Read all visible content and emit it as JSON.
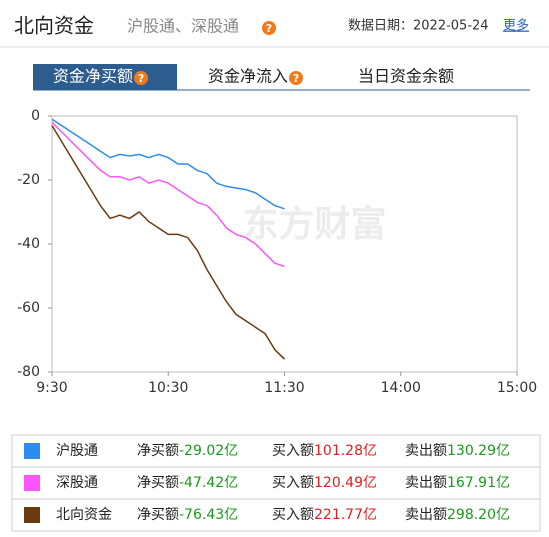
{
  "header": {
    "title": "北向资金",
    "subtitle": "沪股通、深股通",
    "help_icon": "?",
    "date_label": "数据日期：2022-05-24",
    "more": "更多"
  },
  "tabs": [
    {
      "label": "资金净买额",
      "help": "?"
    },
    {
      "label": "资金净流入",
      "help": "?"
    },
    {
      "label": "当日资金余额"
    }
  ],
  "active_tab": 0,
  "chart_data": {
    "type": "line",
    "watermark": "东方财富",
    "x": [
      0,
      5,
      10,
      15,
      20,
      25,
      30,
      35,
      40,
      45,
      50,
      55,
      60,
      65,
      70,
      75,
      80,
      85,
      90,
      95,
      100,
      105,
      110,
      115,
      120
    ],
    "xlim": [
      0,
      240
    ],
    "xticks": [
      {
        "value": 0,
        "label": "9:30"
      },
      {
        "value": 60,
        "label": "10:30"
      },
      {
        "value": 120,
        "label": "11:30"
      },
      {
        "value": 180,
        "label": "14:00"
      },
      {
        "value": 240,
        "label": "15:00"
      }
    ],
    "ylim": [
      -80,
      0
    ],
    "yticks": [
      0,
      -20,
      -40,
      -60,
      -80
    ],
    "series": [
      {
        "name": "沪股通",
        "color": "#2e8cf0",
        "values": [
          -1,
          -3,
          -5,
          -7,
          -9,
          -11,
          -13,
          -12,
          -12.5,
          -12,
          -13,
          -12,
          -13,
          -15,
          -15,
          -17,
          -18,
          -21,
          -22,
          -22.5,
          -23,
          -24,
          -26,
          -28,
          -29
        ]
      },
      {
        "name": "深股通",
        "color": "#ff55ff",
        "values": [
          -2,
          -5,
          -8,
          -11,
          -14,
          -17,
          -19,
          -19,
          -20,
          -19,
          -21,
          -20,
          -21,
          -23,
          -25,
          -27,
          -28,
          -31,
          -35,
          -37,
          -38,
          -40,
          -43,
          -46,
          -47
        ]
      },
      {
        "name": "北向资金",
        "color": "#6b3a10",
        "values": [
          -3,
          -8,
          -13,
          -18,
          -23,
          -28,
          -32,
          -31,
          -32,
          -30,
          -33,
          -35,
          -37,
          -37,
          -38,
          -42,
          -48,
          -53,
          -58,
          -62,
          -64,
          -66,
          -68,
          -73,
          -76
        ]
      }
    ]
  },
  "legend_table": {
    "rows": [
      {
        "net_label": "净买额",
        "net": "-29.02亿",
        "buy_label": "买入额",
        "buy": "101.28亿",
        "sell_label": "卖出额",
        "sell": "130.29亿"
      },
      {
        "net_label": "净买额",
        "net": "-47.42亿",
        "buy_label": "买入额",
        "buy": "120.49亿",
        "sell_label": "卖出额",
        "sell": "167.91亿"
      },
      {
        "net_label": "净买额",
        "net": "-76.43亿",
        "buy_label": "买入额",
        "buy": "221.77亿",
        "sell_label": "卖出额",
        "sell": "298.20亿"
      }
    ]
  }
}
